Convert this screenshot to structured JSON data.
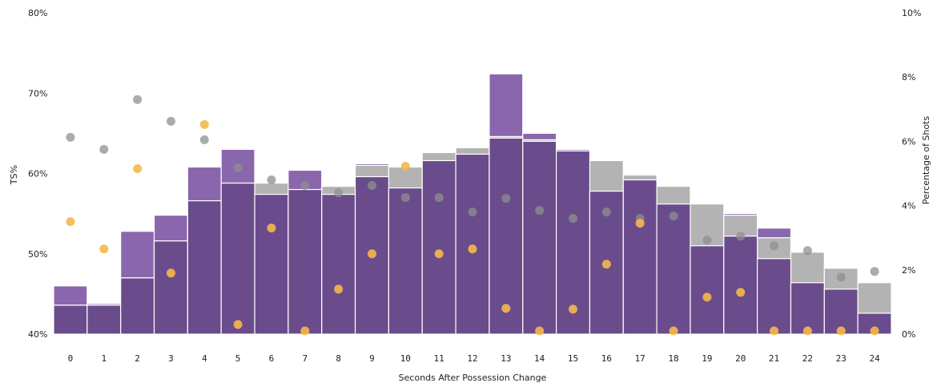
{
  "chart_data": {
    "type": "bar",
    "xlabel": "Seconds After Possession Change",
    "ylabel_left": "TS%",
    "ylabel_right": "Percentage of Shots",
    "ylim_left": [
      40,
      80
    ],
    "ylim_right": [
      0,
      10
    ],
    "left_ticks": [
      "40%",
      "50%",
      "60%",
      "70%",
      "80%"
    ],
    "left_tick_values": [
      40,
      50,
      60,
      70,
      80
    ],
    "right_ticks": [
      "0%",
      "2%",
      "4%",
      "6%",
      "8%",
      "10%"
    ],
    "right_tick_values": [
      0,
      2,
      4,
      6,
      8,
      10
    ],
    "categories": [
      "0",
      "1",
      "2",
      "3",
      "4",
      "5",
      "6",
      "7",
      "8",
      "9",
      "10",
      "11",
      "12",
      "13",
      "14",
      "15",
      "16",
      "17",
      "18",
      "19",
      "20",
      "21",
      "22",
      "23",
      "24"
    ],
    "series": [
      {
        "name": "Percentage of Shots (light purple)",
        "axis": "right",
        "values": [
          1.5,
          0.95,
          3.2,
          3.7,
          5.2,
          5.75,
          4.7,
          5.1,
          4.6,
          5.3,
          5.2,
          5.6,
          5.8,
          8.1,
          6.25,
          5.75,
          5.35,
          4.95,
          4.55,
          4.05,
          3.75,
          3.3,
          2.5,
          2.05,
          1.6
        ]
      },
      {
        "name": "Percentage of Shots (gray)",
        "axis": "right",
        "values": [
          0.9,
          0.9,
          1.75,
          2.9,
          4.15,
          4.7,
          4.7,
          4.5,
          4.6,
          5.25,
          5.2,
          5.65,
          5.8,
          6.15,
          6.05,
          5.7,
          5.4,
          4.95,
          4.6,
          4.05,
          3.7,
          3.0,
          2.55,
          2.05,
          1.6
        ]
      },
      {
        "name": "Percentage of Shots (dark purple)",
        "axis": "right",
        "values": [
          0.9,
          0.9,
          1.75,
          2.9,
          4.15,
          4.7,
          4.35,
          4.5,
          4.35,
          4.9,
          4.55,
          5.4,
          5.6,
          6.1,
          6.0,
          5.7,
          4.45,
          4.8,
          4.05,
          2.75,
          3.05,
          2.35,
          1.6,
          1.4,
          0.65
        ]
      },
      {
        "name": "TS% (gray dots)",
        "axis": "left",
        "values": [
          64.5,
          63.0,
          69.2,
          66.5,
          64.2,
          60.7,
          59.2,
          58.5,
          57.6,
          58.5,
          57.0,
          57.0,
          55.2,
          56.9,
          55.4,
          54.4,
          55.2,
          54.4,
          54.7,
          51.7,
          52.2,
          51.0,
          50.4,
          47.1,
          47.8
        ]
      },
      {
        "name": "TS% (yellow dots)",
        "axis": "left",
        "values": [
          54.0,
          50.6,
          60.6,
          47.6,
          66.1,
          41.2,
          53.2,
          40.4,
          45.6,
          50.0,
          60.9,
          50.0,
          50.6,
          43.2,
          40.4,
          43.1,
          48.7,
          53.8,
          40.4,
          44.6,
          45.2,
          40.4,
          40.4,
          40.4,
          40.4
        ]
      }
    ],
    "colors": {
      "light_purple": "#8a66ad",
      "gray": "#b3b3b3",
      "dark_purple": "#6a4c8c",
      "gray_dot": "#8f8f8f",
      "yellow_dot": "#f5b94a",
      "bar_edge": "#ffffff"
    }
  }
}
